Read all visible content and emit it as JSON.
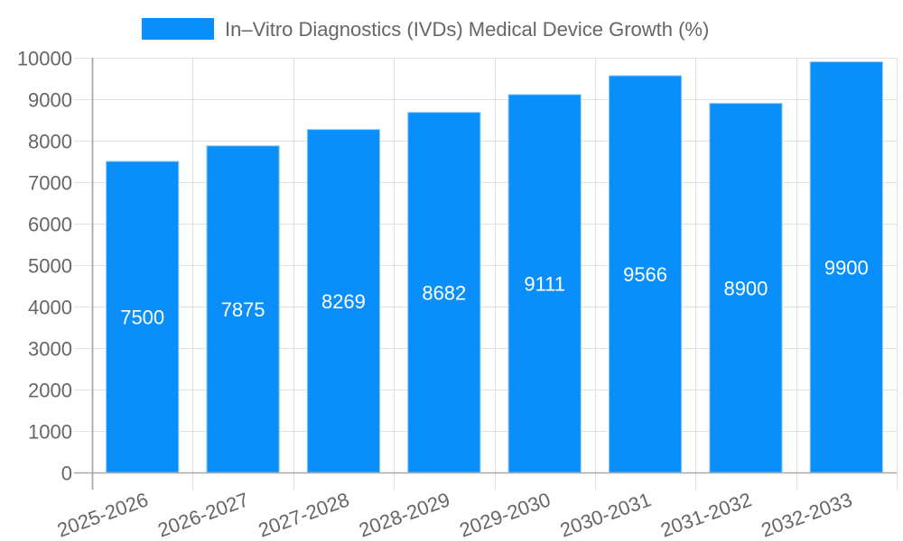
{
  "chart_data": {
    "type": "bar",
    "title": "",
    "categories": [
      "2025-2026",
      "2026-2027",
      "2027-2028",
      "2028-2029",
      "2029-2030",
      "2030-2031",
      "2031-2032",
      "2032-2033"
    ],
    "series": [
      {
        "name": "In–Vitro Diagnostics (IVDs) Medical Device Growth (%)",
        "color": "#0a8ffa",
        "values": [
          7500,
          7875,
          8269,
          8682,
          9111,
          9566,
          8900,
          9900
        ]
      }
    ],
    "data_labels": [
      "7500",
      "7875",
      "8269",
      "8682",
      "9111",
      "9566",
      "8900",
      "9900"
    ],
    "xlabel": "",
    "ylabel": "",
    "ylim": [
      0,
      10000
    ],
    "yticks": [
      0,
      1000,
      2000,
      3000,
      4000,
      5000,
      6000,
      7000,
      8000,
      9000,
      10000
    ],
    "ytick_labels": [
      "0",
      "1000",
      "2000",
      "3000",
      "4000",
      "5000",
      "6000",
      "7000",
      "8000",
      "9000",
      "10000"
    ],
    "grid": true,
    "legend_position": "top",
    "xtick_rotation": -20
  },
  "legend": {
    "label": "In–Vitro Diagnostics (IVDs) Medical Device Growth (%)",
    "swatch_color": "#0a8ffa"
  },
  "colors": {
    "bar": "#0a8ffa",
    "bar_border": "#8fcbfb",
    "grid": "#e1e1e1",
    "axis": "#a8a8a8",
    "text": "#666666",
    "label_text": "#ffffff"
  }
}
